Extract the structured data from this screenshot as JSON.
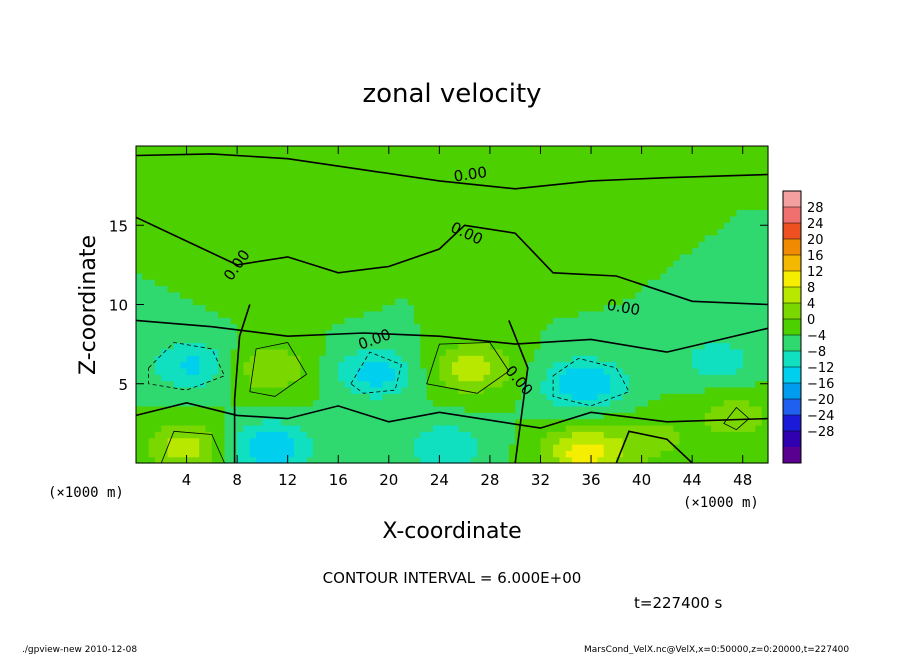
{
  "chart_data": {
    "type": "heatmap",
    "title": "zonal velocity",
    "xlabel": "X-coordinate",
    "ylabel": "Z-coordinate",
    "x_unit_label_left": "(×1000 m)",
    "x_unit_label_right": "(×1000 m)",
    "xlim": [
      0,
      50
    ],
    "ylim": [
      0,
      20
    ],
    "x_ticks": [
      4,
      8,
      12,
      16,
      20,
      24,
      28,
      32,
      36,
      40,
      44,
      48
    ],
    "y_ticks": [
      5,
      10,
      15
    ],
    "colorbar": {
      "labels": [
        28,
        24,
        20,
        16,
        12,
        8,
        4,
        0,
        -4,
        -8,
        -12,
        -16,
        -20,
        -24,
        -28
      ],
      "colors": [
        "#f4a0a0",
        "#f07070",
        "#ee5020",
        "#f08a00",
        "#f5b800",
        "#f5ee00",
        "#b8e800",
        "#7ad800",
        "#4cd000",
        "#30d870",
        "#10e0c0",
        "#00d0ee",
        "#009cf0",
        "#2060f0",
        "#1a1ad8",
        "#3000b0",
        "#5a0090"
      ]
    },
    "contour_labels": [
      "0.00",
      "0.00",
      "0.00",
      "0.00",
      "0.00",
      "0.00"
    ],
    "field_features": [
      {
        "x": 4,
        "z": 1.0,
        "value": 10
      },
      {
        "x": 10.5,
        "z": 1.0,
        "value": -12
      },
      {
        "x": 10.5,
        "z": 6.0,
        "value": 8
      },
      {
        "x": 4.5,
        "z": 6.2,
        "value": -9
      },
      {
        "x": 19,
        "z": 5.7,
        "value": -10
      },
      {
        "x": 26.5,
        "z": 6.0,
        "value": 10
      },
      {
        "x": 35.5,
        "z": 5.0,
        "value": -12
      },
      {
        "x": 35.5,
        "z": 0.7,
        "value": 14
      },
      {
        "x": 46,
        "z": 6.5,
        "value": -6
      },
      {
        "x": 47.5,
        "z": 3.0,
        "value": 6
      },
      {
        "x": 24.5,
        "z": 1.0,
        "value": -8
      },
      {
        "x": 41,
        "z": 1.5,
        "value": 5
      },
      {
        "x": 12,
        "z": 11.0,
        "value": 3
      },
      {
        "x": 30,
        "z": 12.5,
        "value": 2
      }
    ],
    "contour_interval_text": "CONTOUR INTERVAL = 6.000E+00",
    "time_text": "t=227400 s"
  },
  "footer": {
    "left": "./gpview-new  2010-12-08",
    "right": "MarsCond_VelX.nc@VelX,x=0:50000,z=0:20000,t=227400"
  }
}
